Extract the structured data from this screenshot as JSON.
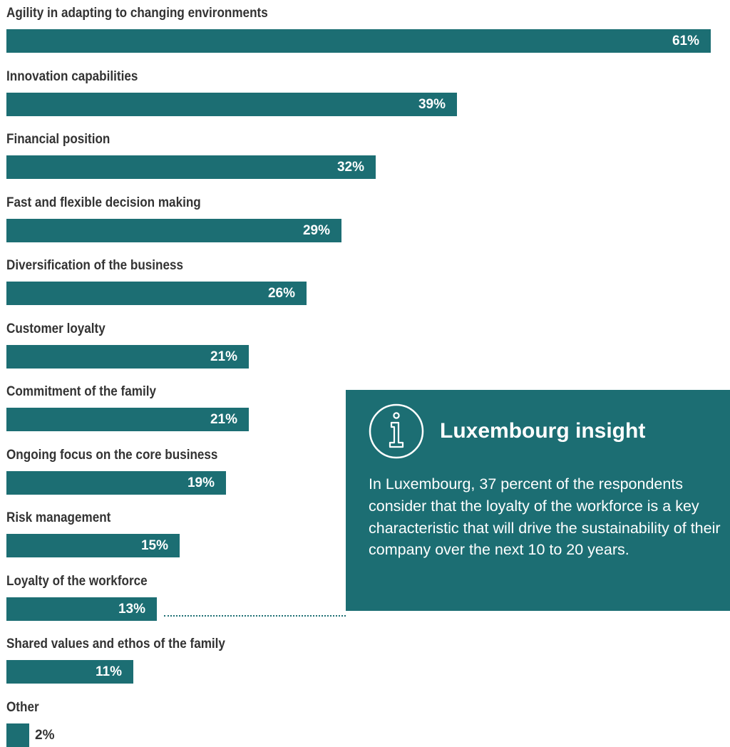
{
  "colors": {
    "bar": "#1c6e73",
    "insight_bg": "#1c6e73",
    "label_text": "#333333",
    "value_text_inside": "#ffffff",
    "value_text_outside": "#333333"
  },
  "chart_data": {
    "type": "bar",
    "orientation": "horizontal",
    "categories": [
      "Agility in adapting to changing environments",
      "Innovation capabilities",
      "Financial position",
      "Fast and flexible decision making",
      "Diversification of the business",
      "Customer loyalty",
      "Commitment of the family",
      "Ongoing focus on the core business",
      "Risk management",
      "Loyalty of the workforce",
      "Shared values and ethos of the family",
      "Other"
    ],
    "values": [
      61,
      39,
      32,
      29,
      26,
      21,
      21,
      19,
      15,
      13,
      11,
      2
    ],
    "value_labels": [
      "61%",
      "39%",
      "32%",
      "29%",
      "26%",
      "21%",
      "21%",
      "19%",
      "15%",
      "13%",
      "11%",
      "2%"
    ],
    "unit": "%",
    "xlim": [
      0,
      61
    ],
    "grid": false,
    "highlighted_category": "Loyalty of the workforce"
  },
  "insight": {
    "icon": "info-icon",
    "title": "Luxembourg insight",
    "body": "In Luxembourg, 37 percent of the respondents consider that the loyalty of the workforce is a key characteristic that will drive the sustainability of their company over the next 10 to 20 years."
  }
}
